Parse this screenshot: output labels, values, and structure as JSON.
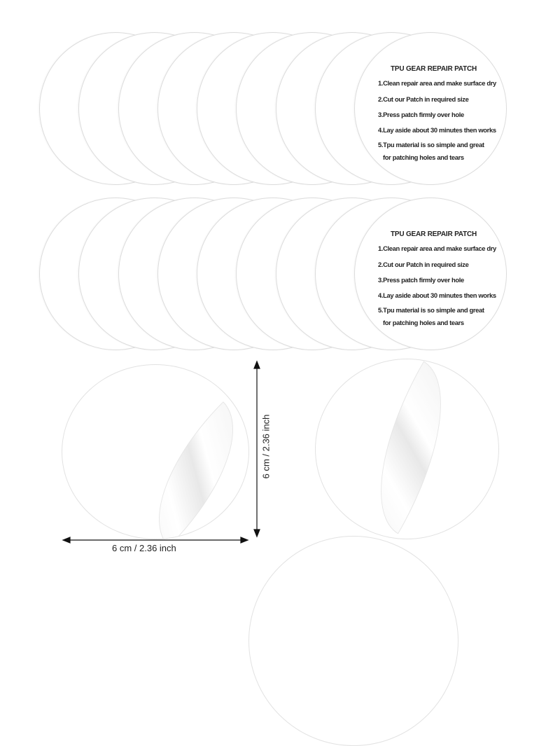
{
  "patch": {
    "title": "TPU GEAR REPAIR PATCH",
    "lines": [
      "1.Clean repair area and make surface dry",
      "2.Cut our Patch in required size",
      "3.Press patch firmly over hole",
      "4.Lay aside about 30 minutes then works",
      "5.Tpu material is so simple and great",
      "for patching holes and tears"
    ],
    "rows": 2,
    "per_row": 9
  },
  "dimensions": {
    "width_label": "6 cm / 2.36 inch",
    "height_label": "6 cm / 2.36 inch"
  }
}
